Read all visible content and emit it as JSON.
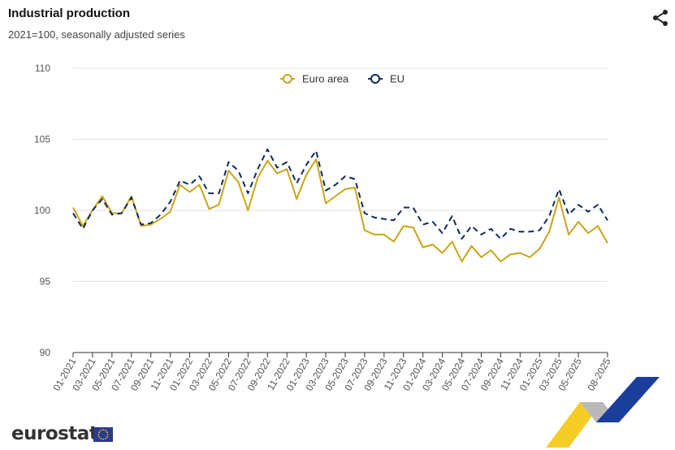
{
  "header": {
    "title": "Industrial production",
    "subtitle": "2021=100, seasonally adjusted series"
  },
  "icons": {
    "share": "share-icon",
    "flag": "eu-flag-icon"
  },
  "branding": {
    "logo_text": "eurostat"
  },
  "colors": {
    "euro_area": "#c9a51a",
    "eu": "#0e2a5c",
    "accent_yellow": "#f4c400",
    "accent_blue": "#1a3e9a"
  },
  "chart_data": {
    "type": "line",
    "title": "Industrial production",
    "subtitle": "2021=100, seasonally adjusted series",
    "xlabel": "",
    "ylabel": "",
    "ylim": [
      90,
      110
    ],
    "y_ticks": [
      "90",
      "95",
      "100",
      "105",
      "110"
    ],
    "grid": "horizontal",
    "legend_position": "top-center",
    "x_tick_labels": [
      "01-2021",
      "03-2021",
      "05-2021",
      "07-2021",
      "09-2021",
      "11-2021",
      "01-2022",
      "03-2022",
      "05-2022",
      "07-2022",
      "09-2022",
      "11-2022",
      "01-2023",
      "03-2023",
      "05-2023",
      "07-2023",
      "09-2023",
      "11-2023",
      "01-2024",
      "03-2024",
      "05-2024",
      "07-2024",
      "09-2024",
      "11-2024",
      "01-2025",
      "03-2025",
      "05-2025",
      "08-2025"
    ],
    "x": [
      "01-2021",
      "02-2021",
      "03-2021",
      "04-2021",
      "05-2021",
      "06-2021",
      "07-2021",
      "08-2021",
      "09-2021",
      "10-2021",
      "11-2021",
      "12-2021",
      "01-2022",
      "02-2022",
      "03-2022",
      "04-2022",
      "05-2022",
      "06-2022",
      "07-2022",
      "08-2022",
      "09-2022",
      "10-2022",
      "11-2022",
      "12-2022",
      "01-2023",
      "02-2023",
      "03-2023",
      "04-2023",
      "05-2023",
      "06-2023",
      "07-2023",
      "08-2023",
      "09-2023",
      "10-2023",
      "11-2023",
      "12-2023",
      "01-2024",
      "02-2024",
      "03-2024",
      "04-2024",
      "05-2024",
      "06-2024",
      "07-2024",
      "08-2024",
      "09-2024",
      "10-2024",
      "11-2024",
      "12-2024",
      "01-2025",
      "02-2025",
      "03-2025",
      "04-2025",
      "05-2025",
      "06-2025",
      "07-2025",
      "08-2025"
    ],
    "series": [
      {
        "name": "Euro area",
        "color": "#c9a51a",
        "dash": false,
        "values": [
          100.2,
          98.9,
          100.0,
          101.0,
          99.8,
          99.8,
          101.0,
          98.9,
          99.0,
          99.4,
          99.9,
          101.8,
          101.3,
          101.8,
          100.1,
          100.4,
          102.8,
          102.0,
          100.0,
          102.3,
          103.5,
          102.6,
          102.9,
          100.8,
          102.5,
          103.6,
          100.5,
          101.0,
          101.5,
          101.6,
          98.6,
          98.3,
          98.3,
          97.8,
          98.9,
          98.8,
          97.4,
          97.6,
          97.0,
          97.8,
          96.4,
          97.5,
          96.7,
          97.2,
          96.4,
          96.9,
          97.0,
          96.7,
          97.3,
          98.5,
          100.9,
          98.3,
          99.2,
          98.4,
          98.9,
          97.7
        ]
      },
      {
        "name": "EU",
        "color": "#0e2a5c",
        "dash": true,
        "values": [
          99.8,
          98.7,
          100.0,
          100.8,
          99.7,
          99.8,
          100.9,
          99.0,
          99.1,
          99.7,
          100.6,
          102.1,
          101.8,
          102.4,
          101.2,
          101.2,
          103.4,
          102.8,
          101.2,
          102.9,
          104.3,
          103.0,
          103.4,
          101.9,
          103.2,
          104.2,
          101.4,
          101.8,
          102.4,
          102.2,
          99.8,
          99.5,
          99.4,
          99.3,
          100.2,
          100.2,
          99.0,
          99.2,
          98.4,
          99.6,
          98.0,
          98.9,
          98.3,
          98.7,
          98.0,
          98.7,
          98.5,
          98.5,
          98.6,
          99.6,
          101.5,
          99.7,
          100.4,
          99.9,
          100.4,
          99.3
        ]
      }
    ]
  }
}
